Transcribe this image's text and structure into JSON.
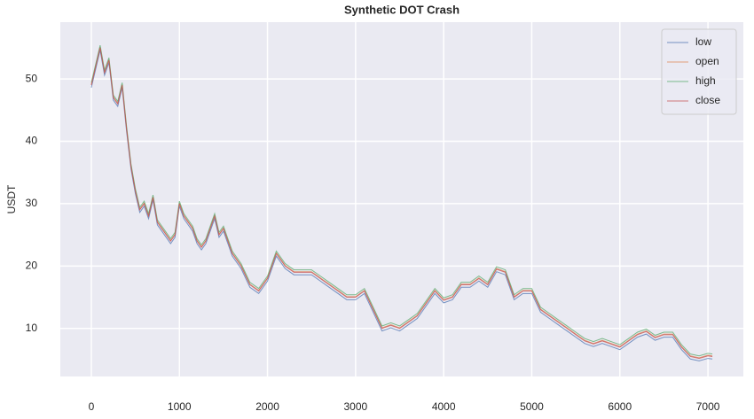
{
  "chart_data": {
    "type": "line",
    "title": "Synthetic DOT Crash",
    "y_label": "USDT",
    "x": [
      0,
      50,
      100,
      150,
      200,
      250,
      300,
      350,
      400,
      450,
      500,
      550,
      600,
      650,
      700,
      750,
      800,
      850,
      900,
      950,
      1000,
      1050,
      1100,
      1150,
      1200,
      1250,
      1300,
      1350,
      1400,
      1450,
      1500,
      1550,
      1600,
      1700,
      1800,
      1900,
      2000,
      2100,
      2200,
      2300,
      2400,
      2500,
      2600,
      2700,
      2800,
      2900,
      3000,
      3100,
      3200,
      3300,
      3400,
      3500,
      3600,
      3700,
      3800,
      3900,
      4000,
      4100,
      4200,
      4300,
      4400,
      4500,
      4600,
      4700,
      4800,
      4900,
      5000,
      5100,
      5200,
      5300,
      5400,
      5500,
      5600,
      5700,
      5800,
      5900,
      6000,
      6100,
      6200,
      6300,
      6400,
      6500,
      6600,
      6700,
      6800,
      6900,
      7000,
      7050
    ],
    "series": [
      {
        "name": "low",
        "color": "#4c72b0",
        "values": [
          48.6,
          51.6,
          54.6,
          50.6,
          52.6,
          46.6,
          45.6,
          48.6,
          41.6,
          35.6,
          31.6,
          28.6,
          29.6,
          27.6,
          30.6,
          26.6,
          25.6,
          24.6,
          23.6,
          24.6,
          29.6,
          27.6,
          26.6,
          25.6,
          23.6,
          22.6,
          23.6,
          25.6,
          27.6,
          24.6,
          25.6,
          23.6,
          21.6,
          19.6,
          16.6,
          15.6,
          17.6,
          21.6,
          19.6,
          18.6,
          18.6,
          18.6,
          17.6,
          16.6,
          15.6,
          14.6,
          14.6,
          15.6,
          12.6,
          9.6,
          10.1,
          9.6,
          10.6,
          11.6,
          13.6,
          15.6,
          14.1,
          14.6,
          16.6,
          16.6,
          17.6,
          16.6,
          19.1,
          18.6,
          14.6,
          15.6,
          15.6,
          12.6,
          11.6,
          10.6,
          9.6,
          8.6,
          7.6,
          7.1,
          7.6,
          7.1,
          6.6,
          7.6,
          8.6,
          9.1,
          8.1,
          8.6,
          8.6,
          6.6,
          5.1,
          4.8,
          5.2,
          5.1
        ]
      },
      {
        "name": "open",
        "color": "#dd8452",
        "values": [
          49.1,
          52.1,
          55.1,
          51.1,
          53.1,
          47.1,
          46.1,
          49.1,
          42.1,
          36.1,
          32.1,
          29.1,
          30.1,
          28.1,
          31.1,
          27.1,
          26.1,
          25.1,
          24.1,
          25.1,
          30.1,
          28.1,
          27.1,
          26.1,
          24.1,
          23.1,
          24.1,
          26.1,
          28.1,
          25.1,
          26.1,
          24.1,
          22.1,
          20.1,
          17.1,
          16.1,
          18.1,
          22.1,
          20.1,
          19.1,
          19.1,
          19.1,
          18.1,
          17.1,
          16.1,
          15.1,
          15.1,
          16.1,
          13.1,
          10.1,
          10.6,
          10.1,
          11.1,
          12.1,
          14.1,
          16.1,
          14.6,
          15.1,
          17.1,
          17.1,
          18.1,
          17.1,
          19.6,
          19.1,
          15.1,
          16.1,
          16.1,
          13.1,
          12.1,
          11.1,
          10.1,
          9.1,
          8.1,
          7.6,
          8.1,
          7.6,
          7.1,
          8.1,
          9.1,
          9.6,
          8.6,
          9.1,
          9.1,
          7.1,
          5.6,
          5.3,
          5.7,
          5.6
        ]
      },
      {
        "name": "high",
        "color": "#55a868",
        "values": [
          49.4,
          52.4,
          55.4,
          51.4,
          53.4,
          47.4,
          46.4,
          49.4,
          42.4,
          36.4,
          32.4,
          29.4,
          30.4,
          28.4,
          31.4,
          27.4,
          26.4,
          25.4,
          24.4,
          25.4,
          30.4,
          28.4,
          27.4,
          26.4,
          24.4,
          23.4,
          24.4,
          26.4,
          28.4,
          25.4,
          26.4,
          24.4,
          22.4,
          20.4,
          17.4,
          16.4,
          18.4,
          22.4,
          20.4,
          19.4,
          19.4,
          19.4,
          18.4,
          17.4,
          16.4,
          15.4,
          15.4,
          16.4,
          13.4,
          10.4,
          10.9,
          10.4,
          11.4,
          12.4,
          14.4,
          16.4,
          14.9,
          15.4,
          17.4,
          17.4,
          18.4,
          17.4,
          19.9,
          19.4,
          15.4,
          16.4,
          16.4,
          13.4,
          12.4,
          11.4,
          10.4,
          9.4,
          8.4,
          7.9,
          8.4,
          7.9,
          7.4,
          8.4,
          9.4,
          9.9,
          8.9,
          9.4,
          9.4,
          7.4,
          5.9,
          5.6,
          6,
          5.9
        ]
      },
      {
        "name": "close",
        "color": "#c44e52",
        "values": [
          49,
          52,
          55,
          51,
          53,
          47,
          46,
          49,
          42,
          36,
          32,
          29,
          30,
          28,
          31,
          27,
          26,
          25,
          24,
          25,
          30,
          28,
          27,
          26,
          24,
          23,
          24,
          26,
          28,
          25,
          26,
          24,
          22,
          20,
          17,
          16,
          18,
          22,
          20,
          19,
          19,
          19,
          18,
          17,
          16,
          15,
          15,
          16,
          13,
          10,
          10.5,
          10,
          11,
          12,
          14,
          16,
          14.5,
          15,
          17,
          17,
          18,
          17,
          19.5,
          19,
          15,
          16,
          16,
          13,
          12,
          11,
          10,
          9,
          8,
          7.5,
          8,
          7.5,
          7,
          8,
          9,
          9.5,
          8.5,
          9,
          9,
          7,
          5.5,
          5.2,
          5.6,
          5.5
        ]
      }
    ],
    "xlim": [
      -352,
      7402
    ],
    "ylim": [
      2.3,
      59.1
    ],
    "xticks": [
      0,
      1000,
      2000,
      3000,
      4000,
      5000,
      6000,
      7000
    ],
    "yticks": [
      10,
      20,
      30,
      40,
      50
    ],
    "grid": true,
    "legend": "upper right"
  }
}
